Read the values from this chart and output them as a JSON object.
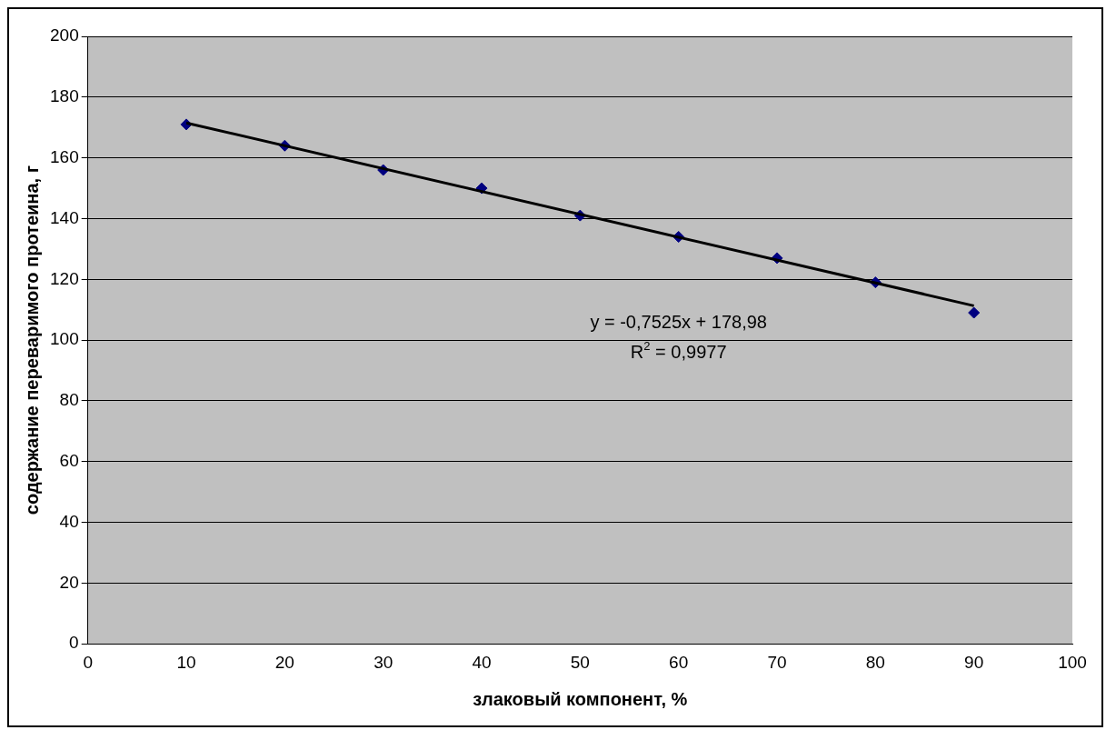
{
  "chart_data": {
    "type": "scatter",
    "xlabel": "злаковый компонент, %",
    "ylabel": "содержание переваримого протеина, г",
    "x": [
      10,
      20,
      30,
      40,
      50,
      60,
      70,
      80,
      90
    ],
    "series": [
      {
        "color": "#000080",
        "marker": "diamond",
        "values": [
          171,
          164,
          156,
          150,
          141,
          134,
          127,
          119,
          109
        ]
      },
      {
        "type": "line",
        "color": "#000000",
        "marker": "none",
        "x": [
          10,
          90
        ],
        "values": [
          171.5,
          111.3
        ]
      }
    ],
    "xlim": [
      0,
      100
    ],
    "xticks": [
      0,
      10,
      20,
      30,
      40,
      50,
      60,
      70,
      80,
      90,
      100
    ],
    "ylim": [
      0,
      200
    ],
    "yticks": [
      0,
      20,
      40,
      60,
      80,
      100,
      120,
      140,
      160,
      180,
      200
    ],
    "grid": "y",
    "legend": false,
    "annotations": [
      "y = -0,7525x + 178,98",
      "R$^{2}$ = 0,9977"
    ]
  }
}
